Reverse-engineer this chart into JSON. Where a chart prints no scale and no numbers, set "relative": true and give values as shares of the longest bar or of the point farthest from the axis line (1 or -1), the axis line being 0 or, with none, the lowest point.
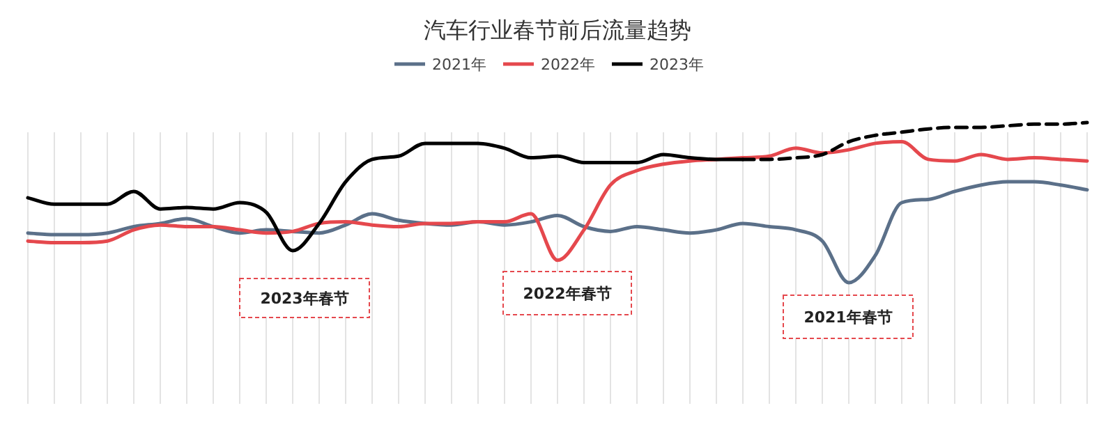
{
  "chart_data": {
    "type": "line",
    "title": "汽车行业春节前后流量趋势",
    "relative": true,
    "grid": "x",
    "legend": "top",
    "marker": "none",
    "categories": [
      null,
      null,
      null,
      null,
      null,
      null,
      null,
      null,
      null,
      null,
      null,
      null,
      null,
      null,
      null,
      null,
      null,
      null,
      null,
      null,
      null,
      null,
      null,
      null,
      null,
      null,
      null,
      null,
      null,
      null,
      null,
      null,
      null,
      null,
      null,
      null,
      null,
      null,
      null,
      null,
      null
    ],
    "series": [
      {
        "name": "2021年",
        "color": "#5b7089",
        "line_style": "solid",
        "values": [
          0.31,
          0.3,
          0.3,
          0.31,
          0.35,
          0.37,
          0.4,
          0.35,
          0.31,
          0.33,
          0.32,
          0.31,
          0.36,
          0.43,
          0.39,
          0.37,
          0.36,
          0.38,
          0.36,
          0.38,
          0.42,
          0.35,
          0.32,
          0.35,
          0.33,
          0.31,
          0.33,
          0.37,
          0.35,
          0.33,
          0.26,
          0,
          0.17,
          0.5,
          0.52,
          0.57,
          0.61,
          0.63,
          0.63,
          0.61,
          0.58
        ]
      },
      {
        "name": "2022年",
        "color": "#e5484d",
        "line_style": "solid",
        "values": [
          0.26,
          0.25,
          0.25,
          0.26,
          0.33,
          0.36,
          0.35,
          0.35,
          0.33,
          0.31,
          0.32,
          0.37,
          0.38,
          0.36,
          0.35,
          0.37,
          0.37,
          0.38,
          0.38,
          0.43,
          0.14,
          0.33,
          0.61,
          0.7,
          0.74,
          0.76,
          0.77,
          0.78,
          0.79,
          0.84,
          0.81,
          0.83,
          0.87,
          0.88,
          0.77,
          0.76,
          0.8,
          0.77,
          0.78,
          0.77,
          0.76
        ]
      },
      {
        "name": "2023年",
        "color": "#000000",
        "line_style": "solid",
        "values": [
          0.53,
          0.49,
          0.49,
          0.49,
          0.57,
          0.46,
          0.47,
          0.46,
          0.5,
          0.44,
          0.2,
          0.37,
          0.63,
          0.77,
          0.79,
          0.87,
          0.87,
          0.87,
          0.84,
          0.78,
          0.79,
          0.75,
          0.75,
          0.75,
          0.8,
          0.78,
          0.77,
          0.77,
          null,
          null,
          null,
          null,
          null,
          null,
          null,
          null,
          null,
          null,
          null,
          null,
          null
        ]
      },
      {
        "color": "#000000",
        "line_style": "dashed",
        "values": [
          null,
          null,
          null,
          null,
          null,
          null,
          null,
          null,
          null,
          null,
          null,
          null,
          null,
          null,
          null,
          null,
          null,
          null,
          null,
          null,
          null,
          null,
          null,
          null,
          null,
          null,
          null,
          0.77,
          0.77,
          0.78,
          0.8,
          0.88,
          0.92,
          0.94,
          0.96,
          0.97,
          0.97,
          0.98,
          0.99,
          0.99,
          1
        ]
      }
    ],
    "annotations": [
      "2023年春节",
      "2022年春节",
      "2021年春节"
    ]
  }
}
